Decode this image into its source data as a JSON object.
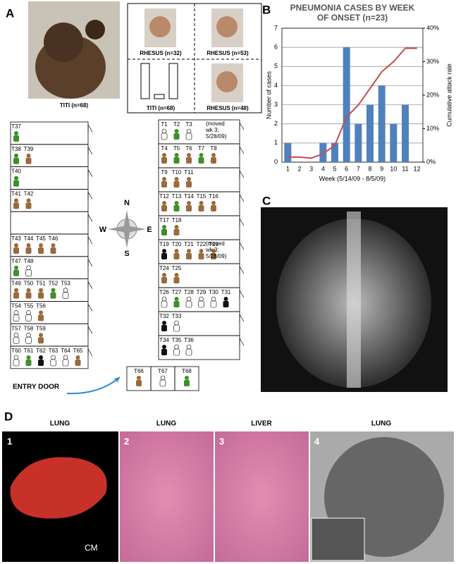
{
  "panel_labels": [
    "A",
    "B",
    "C",
    "D"
  ],
  "panel_a": {
    "titi_caption": "TITI (n=68)",
    "quadrants": [
      "RHESUS (n=32)",
      "RHESUS (n=53)",
      "TITI (n=68)",
      "RHESUS (n=48)"
    ],
    "compass": {
      "n": "N",
      "e": "E",
      "s": "S",
      "w": "W"
    },
    "entry_door": "ENTRY DOOR",
    "note_1": [
      "(moved",
      "wk 3;",
      "5/28/09)"
    ],
    "note_2": [
      "(moved",
      "wk 3;",
      "5/28/09)"
    ],
    "left_rows": [
      [
        {
          "label": "T37",
          "color": "#3e8e2a"
        }
      ],
      [
        {
          "label": "T38",
          "color": "#3e8e2a"
        },
        {
          "label": "T39",
          "color": "#9a6a3c"
        }
      ],
      [
        {
          "label": "T40",
          "color": "#3e8e2a"
        }
      ],
      [
        {
          "label": "T41",
          "color": "#9a6a3c"
        },
        {
          "label": "T42",
          "color": "#9a6a3c"
        }
      ],
      [],
      [
        {
          "label": "T43",
          "color": "#9a6a3c"
        },
        {
          "label": "T44",
          "color": "#9a6a3c"
        },
        {
          "label": "T45",
          "color": "#9a6a3c"
        },
        {
          "label": "T46",
          "color": "#9a6a3c"
        }
      ],
      [
        {
          "label": "T47",
          "color": "#3e8e2a"
        },
        {
          "label": "T48",
          "color": "#ffffff"
        }
      ],
      [
        {
          "label": "T49",
          "color": "#9a6a3c"
        },
        {
          "label": "T50",
          "color": "#9a6a3c"
        },
        {
          "label": "T51",
          "color": "#9a6a3c"
        },
        {
          "label": "T52",
          "color": "#3e8e2a"
        },
        {
          "label": "T53",
          "color": "#ffffff"
        }
      ],
      [
        {
          "label": "T54",
          "color": "#ffffff"
        },
        {
          "label": "T55",
          "color": "#ffffff"
        },
        {
          "label": "T56",
          "color": "#9a6a3c"
        }
      ],
      [
        {
          "label": "T57",
          "color": "#ffffff"
        },
        {
          "label": "T58",
          "color": "#ffffff"
        },
        {
          "label": "T59",
          "color": "#9a6a3c"
        }
      ],
      [
        {
          "label": "T60",
          "color": "#ffffff"
        },
        {
          "label": "T61",
          "color": "#3e8e2a"
        },
        {
          "label": "T62",
          "color": "#111111"
        },
        {
          "label": "T63",
          "color": "#ffffff"
        },
        {
          "label": "T64",
          "color": "#ffffff"
        },
        {
          "label": "T65",
          "color": "#9a6a3c"
        }
      ]
    ],
    "right_rows": [
      [
        {
          "label": "T1",
          "color": "#ffffff"
        },
        {
          "label": "T2",
          "color": "#3e8e2a"
        },
        {
          "label": "T3",
          "color": "#ffffff"
        }
      ],
      [
        {
          "label": "T4",
          "color": "#9a6a3c"
        },
        {
          "label": "T5",
          "color": "#3e8e2a"
        },
        {
          "label": "T6",
          "color": "#9a6a3c"
        },
        {
          "label": "T7",
          "color": "#3e8e2a"
        },
        {
          "label": "T8",
          "color": "#9a6a3c"
        }
      ],
      [
        {
          "label": "T9",
          "color": "#9a6a3c"
        },
        {
          "label": "T10",
          "color": "#9a6a3c"
        },
        {
          "label": "T11",
          "color": "#9a6a3c"
        }
      ],
      [
        {
          "label": "T12",
          "color": "#9a6a3c"
        },
        {
          "label": "T13",
          "color": "#3e8e2a"
        },
        {
          "label": "T14",
          "color": "#9a6a3c"
        },
        {
          "label": "T15",
          "color": "#9a6a3c"
        },
        {
          "label": "T16",
          "color": "#9a6a3c"
        }
      ],
      [
        {
          "label": "T17",
          "color": "#3e8e2a"
        },
        {
          "label": "T18",
          "color": "#9a6a3c"
        }
      ],
      [
        {
          "label": "T19",
          "color": "#111111"
        },
        {
          "label": "T20",
          "color": "#9a6a3c"
        },
        {
          "label": "T21",
          "color": "#9a6a3c"
        },
        {
          "label": "T22",
          "color": "#9a6a3c"
        },
        {
          "label": "T23",
          "color": "#9a6a3c"
        }
      ],
      [
        {
          "label": "T24",
          "color": "#9a6a3c"
        },
        {
          "label": "T25",
          "color": "#9a6a3c"
        }
      ],
      [
        {
          "label": "T26",
          "color": "#ffffff"
        },
        {
          "label": "T27",
          "color": "#3e8e2a"
        },
        {
          "label": "T28",
          "color": "#ffffff"
        },
        {
          "label": "T29",
          "color": "#ffffff"
        },
        {
          "label": "T30",
          "color": "#ffffff"
        },
        {
          "label": "T31",
          "color": "#111111"
        }
      ],
      [
        {
          "label": "T32",
          "color": "#111111"
        },
        {
          "label": "T33",
          "color": "#ffffff"
        }
      ],
      [
        {
          "label": "T34",
          "color": "#111111"
        },
        {
          "label": "T35",
          "color": "#ffffff"
        },
        {
          "label": "T36",
          "color": "#ffffff"
        }
      ]
    ],
    "entry_rows": [
      {
        "label": "T66",
        "color": "#9a6a3c"
      },
      {
        "label": "T67",
        "color": "#ffffff"
      },
      {
        "label": "T68",
        "color": "#3e8e2a"
      }
    ]
  },
  "chart_data": {
    "type": "bar",
    "title": "PNEUMONIA CASES BY WEEK OF ONSET (n=23)",
    "categories": [
      "1",
      "2",
      "3",
      "4",
      "5",
      "6",
      "7",
      "8",
      "9",
      "10",
      "11",
      "12"
    ],
    "series": [
      {
        "type": "bar",
        "color": "#4f81bd",
        "values": [
          1,
          0,
          0,
          1,
          1,
          6,
          2,
          3,
          4,
          2,
          3,
          0
        ]
      },
      {
        "type": "line",
        "axis": "y2",
        "color": "#c0504d",
        "values": [
          1.5,
          1.5,
          1.2,
          2.5,
          5,
          13.5,
          17,
          22,
          27,
          30,
          34,
          34
        ]
      }
    ],
    "ylim": [
      0,
      7
    ],
    "yticks": [
      0,
      1,
      2,
      3,
      4,
      5,
      6,
      7
    ],
    "y2lim": [
      0,
      40
    ],
    "y2ticks": [
      {
        "value": 0,
        "label": "0%"
      },
      {
        "value": 10,
        "label": "10%"
      },
      {
        "value": 20,
        "label": "20%"
      },
      {
        "value": 30,
        "label": "30%"
      },
      {
        "value": 40,
        "label": "40%"
      }
    ],
    "xlabel": "Week (5/14/09 - 8/5/09)",
    "ylabel": "Number of cases",
    "y2label": "Cumulative attack rate",
    "grid": true
  },
  "panel_d": {
    "headers": [
      "LUNG",
      "LUNG",
      "LIVER",
      "LUNG"
    ],
    "numbers": [
      "1",
      "2",
      "3",
      "4"
    ],
    "scale": "CM"
  }
}
